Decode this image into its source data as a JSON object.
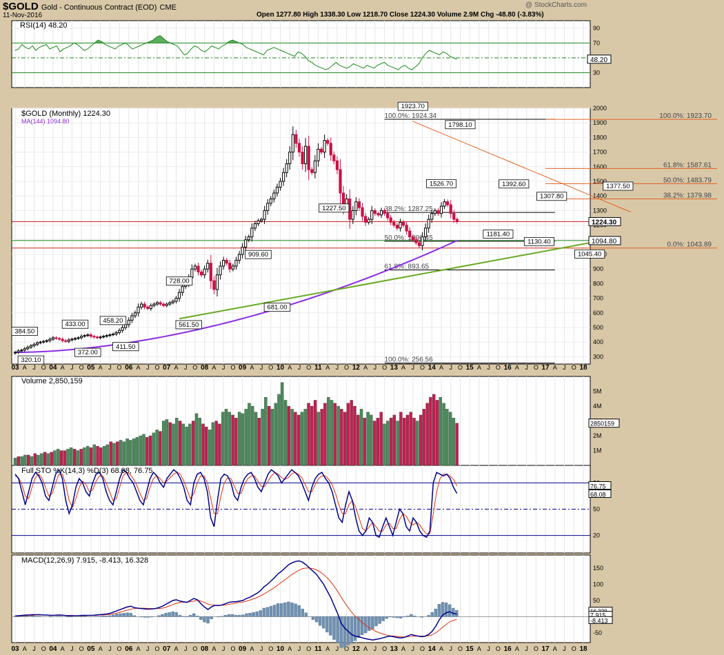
{
  "header": {
    "symbol": "$GOLD",
    "name": "Gold - Continuous Contract (EOD)",
    "exchange": "CME",
    "date": "11-Nov-2016",
    "ohlc": "Open 1277.80  High 1338.30  Low 1218.70  Close 1224.30  Volume 2.9M  Chg -48.80 (-3.83%)",
    "watermark": "@ StockCharts.com"
  },
  "colors": {
    "up": "#000000",
    "down": "#cc1144",
    "rsi": "#1a8a1a",
    "ma": "#8a2be2",
    "trend": "#66aa22",
    "fib": "#e06020",
    "volume_up": "#4a8a5a",
    "volume_down": "#c02050",
    "k": "#00008b",
    "d": "#e03010",
    "macd": "#00008b",
    "signal": "#e03010",
    "hist": "#7090b0"
  },
  "chart_data": [
    {
      "type": "line",
      "panel": "rsi",
      "label": "RSI(14) 48.20",
      "current": "48.20",
      "ylim": [
        10,
        100
      ],
      "ticks": [
        30,
        50,
        70,
        90
      ],
      "levels": [
        30,
        70
      ],
      "values": [
        60,
        62,
        68,
        64,
        62,
        66,
        60,
        64,
        66,
        68,
        62,
        64,
        66,
        58,
        62,
        64,
        66,
        70,
        68,
        64,
        60,
        62,
        66,
        70,
        74,
        72,
        68,
        66,
        64,
        62,
        66,
        68,
        70,
        66,
        62,
        64,
        66,
        68,
        70,
        72,
        74,
        78,
        80,
        76,
        72,
        70,
        68,
        66,
        60,
        54,
        56,
        62,
        66,
        64,
        60,
        58,
        62,
        66,
        64,
        62,
        66,
        68,
        72,
        74,
        72,
        70,
        68,
        64,
        62,
        60,
        58,
        56,
        54,
        60,
        62,
        64,
        62,
        60,
        58,
        56,
        54,
        52,
        58,
        56,
        52,
        46,
        44,
        40,
        38,
        36,
        34,
        36,
        40,
        44,
        40,
        38,
        36,
        38,
        42,
        40,
        38,
        36,
        40,
        38,
        36,
        40,
        42,
        44,
        40,
        38,
        36,
        34,
        38,
        40,
        36,
        34,
        38,
        42,
        50,
        56,
        60,
        58,
        56,
        54,
        58,
        56,
        52,
        50,
        48
      ]
    },
    {
      "type": "candlestick",
      "panel": "price",
      "label": "$GOLD (Monthly) 1224.30",
      "ma_label": "MA(144) 1094.80",
      "ylim": [
        250,
        2000
      ],
      "ticks": [
        300,
        400,
        500,
        600,
        700,
        800,
        900,
        1000,
        1100,
        1200,
        1300,
        1400,
        1500,
        1600,
        1700,
        1800,
        1900,
        2000
      ],
      "x_labels": [
        "03",
        "A",
        "J",
        "O",
        "04",
        "A",
        "J",
        "O",
        "05",
        "A",
        "J",
        "O",
        "06",
        "A",
        "J",
        "O",
        "07",
        "A",
        "J",
        "O",
        "08",
        "A",
        "J",
        "O",
        "09",
        "A",
        "J",
        "O",
        "10",
        "A",
        "J",
        "O",
        "11",
        "A",
        "J",
        "O",
        "12",
        "A",
        "J",
        "O",
        "13",
        "A",
        "J",
        "O",
        "14",
        "A",
        "J",
        "O",
        "15",
        "A",
        "J",
        "O",
        "16",
        "A",
        "J",
        "O",
        "17",
        "A",
        "J",
        "O",
        "18"
      ],
      "current_label": "1224.30",
      "ma_current_label": "1094.80",
      "close": [
        330,
        340,
        345,
        355,
        365,
        375,
        385,
        395,
        400,
        405,
        410,
        420,
        430,
        425,
        420,
        410,
        405,
        415,
        420,
        425,
        430,
        440,
        445,
        450,
        440,
        435,
        430,
        435,
        440,
        445,
        450,
        455,
        465,
        480,
        500,
        520,
        550,
        580,
        600,
        640,
        660,
        640,
        630,
        650,
        660,
        670,
        660,
        650,
        660,
        670,
        680,
        700,
        740,
        780,
        800,
        840,
        900,
        920,
        880,
        860,
        900,
        940,
        820,
        760,
        860,
        920,
        960,
        940,
        900,
        920,
        960,
        1000,
        1050,
        1100,
        1120,
        1180,
        1210,
        1230,
        1240,
        1300,
        1350,
        1380,
        1420,
        1460,
        1500,
        1560,
        1620,
        1700,
        1820,
        1760,
        1700,
        1620,
        1740,
        1580,
        1560,
        1640,
        1720,
        1700,
        1780,
        1760,
        1680,
        1640,
        1580,
        1420,
        1320,
        1380,
        1240,
        1300,
        1360,
        1320,
        1260,
        1220,
        1240,
        1300,
        1280,
        1270,
        1300,
        1280,
        1250,
        1220,
        1200,
        1180,
        1220,
        1200,
        1160,
        1120,
        1100,
        1080,
        1060,
        1120,
        1180,
        1240,
        1280,
        1300,
        1280,
        1330,
        1360,
        1340,
        1280,
        1240,
        1224
      ],
      "ma_start": 330,
      "ma_end": 1094.8,
      "annotations": [
        {
          "text": "384.50",
          "x": 3,
          "y": 384.5,
          "pos": "above"
        },
        {
          "text": "320.10",
          "x": 5,
          "y": 320.1,
          "pos": "below"
        },
        {
          "text": "433.00",
          "x": 19,
          "y": 433,
          "pos": "above"
        },
        {
          "text": "372.00",
          "x": 23,
          "y": 372,
          "pos": "below"
        },
        {
          "text": "458.20",
          "x": 31,
          "y": 458.2,
          "pos": "above"
        },
        {
          "text": "411.50",
          "x": 35,
          "y": 411.5,
          "pos": "below"
        },
        {
          "text": "728.00",
          "x": 52,
          "y": 728,
          "pos": "above"
        },
        {
          "text": "561.50",
          "x": 55,
          "y": 561.5,
          "pos": "below"
        },
        {
          "text": "909.60",
          "x": 77,
          "y": 909.6,
          "pos": "above"
        },
        {
          "text": "681.00",
          "x": 83,
          "y": 681,
          "pos": "below"
        },
        {
          "text": "1227.50",
          "x": 101,
          "y": 1227.5,
          "pos": "above"
        },
        {
          "text": "1923.70",
          "x": 126,
          "y": 1923.7,
          "pos": "above"
        },
        {
          "text": "1526.70",
          "x": 135,
          "y": 1526.7,
          "pos": "below"
        },
        {
          "text": "1798.10",
          "x": 141,
          "y": 1798.1,
          "pos": "above"
        },
        {
          "text": "1392.60",
          "x": 158,
          "y": 1392.6,
          "pos": "above"
        },
        {
          "text": "1181.40",
          "x": 153,
          "y": 1181.4,
          "pos": "below"
        },
        {
          "text": "1307.80",
          "x": 170,
          "y": 1307.8,
          "pos": "above"
        },
        {
          "text": "1130.40",
          "x": 166,
          "y": 1130.4,
          "pos": "below"
        },
        {
          "text": "1045.40",
          "x": 182,
          "y": 1045.4,
          "pos": "below"
        },
        {
          "text": "1377.50",
          "x": 191,
          "y": 1377.5,
          "pos": "above"
        }
      ],
      "fib_left": [
        {
          "text": "100.0%: 1924.34",
          "y": 1924.34
        },
        {
          "text": "38.2%: 1287.25",
          "y": 1287.25
        },
        {
          "text": "50.0%: 1090.45",
          "y": 1090.45
        },
        {
          "text": "61.8%: 893.65",
          "y": 893.65
        },
        {
          "text": "100.0%: 256.56",
          "y": 256.56
        }
      ],
      "fib_right": [
        {
          "text": "100.0%: 1923.70",
          "y": 1923.7
        },
        {
          "text": "61.8%: 1587.61",
          "y": 1587.61
        },
        {
          "text": "50.0%: 1483.79",
          "y": 1483.79
        },
        {
          "text": "38.2%: 1379.98",
          "y": 1379.98
        },
        {
          "text": "0.0%: 1043.89",
          "y": 1043.89
        }
      ],
      "horizontal_lines": [
        1224.3,
        1094.8,
        1043.89
      ]
    },
    {
      "type": "bar",
      "panel": "volume",
      "label": "Volume 2,850,159",
      "current_label": "2850159",
      "ticks": [
        "1M",
        "2M",
        "3M",
        "4M",
        "5M"
      ],
      "ylim": [
        0,
        6
      ],
      "values": [
        0.5,
        0.6,
        0.6,
        0.7,
        0.7,
        0.6,
        0.8,
        0.7,
        0.8,
        0.9,
        0.8,
        0.9,
        1.0,
        1.1,
        1.0,
        1.0,
        1.1,
        1.2,
        1.1,
        1.0,
        1.1,
        1.2,
        1.3,
        1.2,
        1.4,
        1.3,
        1.2,
        1.3,
        1.4,
        1.6,
        1.5,
        1.6,
        1.7,
        1.6,
        1.8,
        1.7,
        1.8,
        1.9,
        2.0,
        2.1,
        1.9,
        2.0,
        2.2,
        2.4,
        2.3,
        3.0,
        3.1,
        2.9,
        2.8,
        3.2,
        3.0,
        2.8,
        2.6,
        2.8,
        3.0,
        3.5,
        3.2,
        2.8,
        2.6,
        2.4,
        2.9,
        3.0,
        2.8,
        3.6,
        3.8,
        3.6,
        3.4,
        3.2,
        3.6,
        3.5,
        3.8,
        4.2,
        4.0,
        3.6,
        3.2,
        3.8,
        4.6,
        4.0,
        3.8,
        4.2,
        4.8,
        5.6,
        4.4,
        4.0,
        3.8,
        3.6,
        3.4,
        3.6,
        3.8,
        4.2,
        4.0,
        4.4,
        3.6,
        3.8,
        4.2,
        4.6,
        4.4,
        4.2,
        4.0,
        3.8,
        3.6,
        4.2,
        4.4,
        4.0,
        3.4,
        3.8,
        3.2,
        3.6,
        3.4,
        3.0,
        3.2,
        3.6,
        2.8,
        3.0,
        3.2,
        3.4,
        3.0,
        3.6,
        3.2,
        3.4,
        3.6,
        3.2,
        3.0,
        3.4,
        3.8,
        4.2,
        4.6,
        4.8,
        4.4,
        4.6,
        4.2,
        3.8,
        3.6,
        3.2,
        2.85
      ],
      "up": [
        1,
        0,
        1,
        1,
        0,
        1,
        0,
        1,
        1,
        0,
        1,
        0,
        1,
        1,
        0,
        0,
        1,
        1,
        0,
        1,
        0,
        1,
        1,
        0,
        1,
        0,
        0,
        1,
        1,
        0,
        1,
        0,
        1,
        1,
        1,
        1,
        1,
        1,
        1,
        1,
        0,
        0,
        1,
        1,
        0,
        1,
        1,
        0,
        1,
        1,
        0,
        1,
        1,
        1,
        0,
        1,
        1,
        0,
        0,
        1,
        1,
        0,
        0,
        1,
        1,
        1,
        0,
        0,
        1,
        1,
        1,
        1,
        1,
        1,
        0,
        1,
        1,
        0,
        1,
        1,
        1,
        1,
        1,
        0,
        1,
        0,
        0,
        1,
        1,
        0,
        0,
        0,
        1,
        0,
        0,
        1,
        1,
        0,
        1,
        0,
        0,
        0,
        0,
        0,
        0,
        1,
        0,
        1,
        1,
        0,
        0,
        0,
        1,
        1,
        0,
        0,
        1,
        0,
        0,
        0,
        0,
        0,
        1,
        0,
        0,
        0,
        0,
        0,
        0,
        1,
        1,
        1,
        1,
        1,
        0,
        1,
        1,
        0,
        0,
        0,
        0
      ]
    },
    {
      "type": "line",
      "panel": "stochastic",
      "label": "Full STO %K(14,3) %D(3) 68.08, 76.75",
      "k_label": "68.08",
      "d_label": "76.75",
      "ylim": [
        0,
        100
      ],
      "ticks": [
        20,
        50,
        80
      ],
      "levels": [
        20,
        80
      ],
      "k": [
        90,
        85,
        70,
        55,
        70,
        85,
        92,
        88,
        80,
        65,
        60,
        75,
        90,
        95,
        85,
        60,
        45,
        55,
        75,
        85,
        80,
        70,
        65,
        80,
        90,
        92,
        85,
        70,
        60,
        55,
        70,
        85,
        95,
        92,
        85,
        80,
        70,
        60,
        55,
        70,
        85,
        92,
        88,
        80,
        75,
        85,
        90,
        95,
        92,
        85,
        75,
        60,
        55,
        80,
        90,
        92,
        85,
        70,
        40,
        30,
        60,
        85,
        90,
        88,
        80,
        65,
        60,
        75,
        85,
        90,
        92,
        85,
        75,
        70,
        80,
        90,
        95,
        92,
        88,
        80,
        85,
        90,
        95,
        92,
        88,
        80,
        70,
        60,
        75,
        85,
        90,
        92,
        85,
        80,
        70,
        55,
        40,
        35,
        55,
        70,
        60,
        40,
        25,
        20,
        25,
        40,
        35,
        20,
        18,
        30,
        40,
        30,
        20,
        35,
        50,
        45,
        30,
        25,
        40,
        35,
        25,
        20,
        18,
        25,
        80,
        92,
        90,
        88,
        90,
        85,
        75,
        68
      ],
      "d": [
        88,
        86,
        78,
        65,
        62,
        75,
        86,
        90,
        85,
        75,
        65,
        68,
        80,
        90,
        90,
        78,
        60,
        52,
        62,
        75,
        82,
        78,
        70,
        72,
        82,
        88,
        88,
        80,
        70,
        60,
        62,
        75,
        88,
        92,
        90,
        85,
        78,
        68,
        60,
        62,
        75,
        85,
        88,
        85,
        80,
        82,
        86,
        90,
        92,
        90,
        82,
        72,
        62,
        68,
        80,
        88,
        88,
        80,
        62,
        45,
        45,
        65,
        80,
        86,
        85,
        76,
        68,
        68,
        78,
        85,
        88,
        88,
        82,
        76,
        76,
        82,
        88,
        92,
        90,
        86,
        84,
        86,
        90,
        92,
        90,
        86,
        78,
        70,
        70,
        78,
        85,
        88,
        88,
        84,
        78,
        68,
        55,
        45,
        45,
        55,
        60,
        52,
        40,
        28,
        25,
        30,
        35,
        30,
        25,
        25,
        32,
        34,
        28,
        28,
        38,
        45,
        42,
        35,
        32,
        35,
        32,
        26,
        22,
        22,
        45,
        70,
        85,
        90,
        90,
        88,
        84,
        76.75
      ]
    },
    {
      "type": "line",
      "panel": "macd",
      "label": "MACD(12,26,9) 7.915, -8.413, 16.328",
      "macd_label": "7.915",
      "signal_label": "-8.413",
      "ylim": [
        -80,
        190
      ],
      "ticks": [
        -50,
        0,
        50,
        100,
        150
      ],
      "macd": [
        2,
        3,
        4,
        5,
        5,
        6,
        6,
        6,
        5,
        5,
        4,
        4,
        5,
        5,
        4,
        3,
        3,
        3,
        3,
        4,
        4,
        4,
        4,
        5,
        6,
        7,
        8,
        10,
        14,
        18,
        22,
        26,
        30,
        32,
        28,
        26,
        25,
        24,
        23,
        24,
        25,
        28,
        32,
        38,
        44,
        50,
        52,
        48,
        46,
        44,
        50,
        56,
        52,
        40,
        30,
        22,
        30,
        35,
        34,
        36,
        40,
        44,
        46,
        46,
        48,
        50,
        56,
        60,
        66,
        72,
        80,
        92,
        100,
        110,
        120,
        132,
        140,
        150,
        160,
        166,
        170,
        172,
        168,
        160,
        150,
        140,
        130,
        115,
        100,
        80,
        60,
        35,
        10,
        -20,
        -35,
        -45,
        -55,
        -60,
        -62,
        -65,
        -68,
        -70,
        -72,
        -70,
        -68,
        -65,
        -62,
        -60,
        -62,
        -64,
        -66,
        -64,
        -60,
        -55,
        -58,
        -60,
        -62,
        -60,
        -55,
        -45,
        -30,
        -10,
        5,
        12,
        15,
        10,
        7.9
      ],
      "signal": [
        1,
        2,
        3,
        3,
        4,
        4,
        5,
        5,
        5,
        5,
        5,
        4,
        4,
        4,
        4,
        4,
        4,
        3,
        3,
        3,
        3,
        4,
        4,
        4,
        5,
        5,
        6,
        7,
        9,
        11,
        14,
        17,
        20,
        23,
        25,
        26,
        26,
        26,
        25,
        25,
        25,
        25,
        26,
        29,
        33,
        37,
        41,
        44,
        45,
        45,
        46,
        48,
        50,
        48,
        44,
        39,
        36,
        35,
        35,
        35,
        36,
        38,
        40,
        42,
        44,
        45,
        48,
        51,
        55,
        59,
        64,
        70,
        76,
        83,
        90,
        98,
        106,
        114,
        122,
        130,
        137,
        143,
        148,
        150,
        150,
        148,
        144,
        138,
        130,
        120,
        108,
        94,
        78,
        60,
        44,
        28,
        14,
        2,
        -8,
        -18,
        -26,
        -34,
        -40,
        -46,
        -50,
        -54,
        -57,
        -59,
        -60,
        -61,
        -62,
        -63,
        -62,
        -61,
        -60,
        -60,
        -60,
        -60,
        -59,
        -56,
        -50,
        -42,
        -32,
        -24,
        -16,
        -12,
        -8.4
      ],
      "hist_label": "16.328"
    }
  ]
}
